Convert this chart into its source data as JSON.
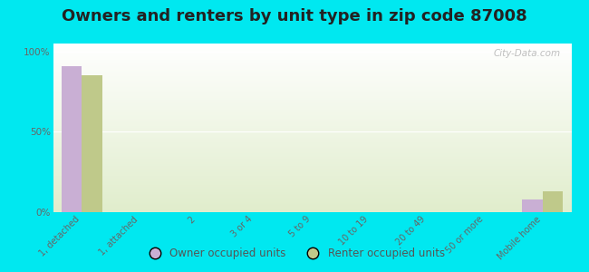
{
  "title": "Owners and renters by unit type in zip code 87008",
  "categories": [
    "1, detached",
    "1, attached",
    "2",
    "3 or 4",
    "5 to 9",
    "10 to 19",
    "20 to 49",
    "50 or more",
    "Mobile home"
  ],
  "owner_values": [
    91,
    0,
    0,
    0,
    0,
    0,
    0,
    0,
    8
  ],
  "renter_values": [
    85,
    0,
    0,
    0,
    0,
    0,
    0,
    0,
    13
  ],
  "owner_color": "#c9afd4",
  "renter_color": "#bfc98a",
  "background_color": "#00e8f0",
  "yticks": [
    0,
    50,
    100
  ],
  "ytick_labels": [
    "0%",
    "50%",
    "100%"
  ],
  "watermark": "City-Data.com",
  "legend_owner": "Owner occupied units",
  "legend_renter": "Renter occupied units",
  "bar_width": 0.35,
  "title_fontsize": 13
}
